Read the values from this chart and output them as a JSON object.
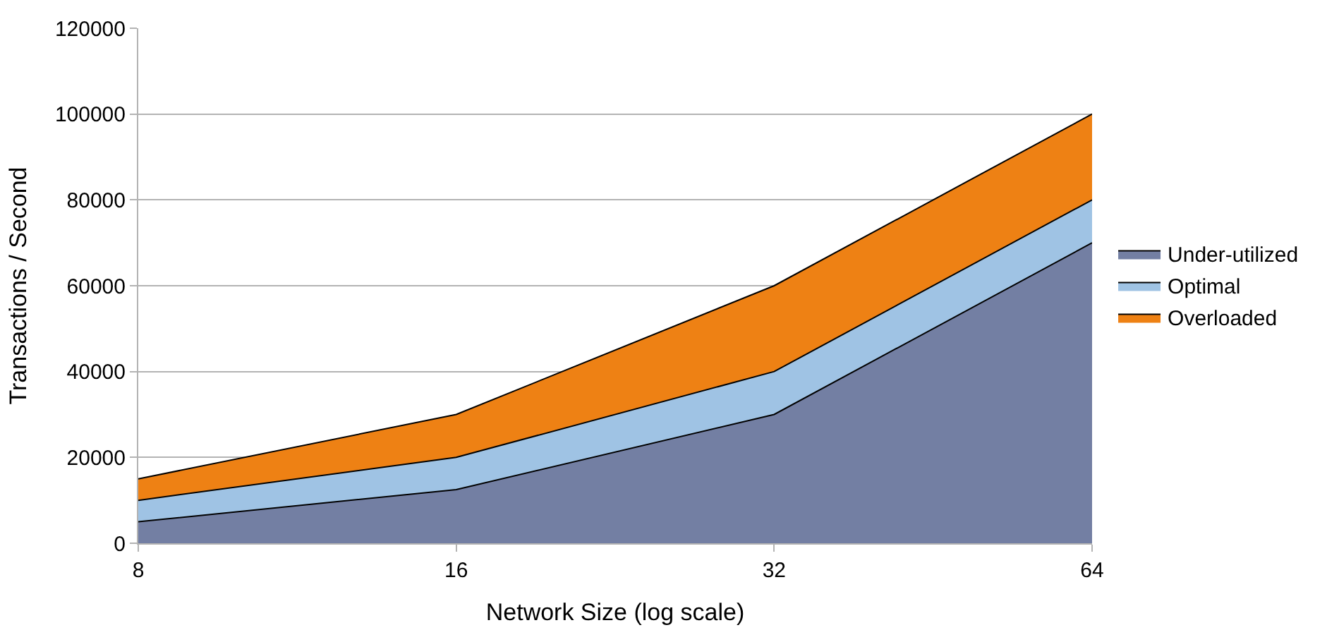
{
  "chart_data": {
    "type": "area",
    "stacked": true,
    "xlabel": "Network Size (log scale)",
    "ylabel": "Transactions / Second",
    "x": [
      8,
      16,
      32,
      64
    ],
    "log": "x",
    "xlim": [
      8,
      64
    ],
    "xticks": [
      8,
      16,
      32,
      64
    ],
    "ylim": [
      0,
      120000
    ],
    "yticks": [
      0,
      20000,
      40000,
      60000,
      80000,
      100000,
      120000
    ],
    "grid": "y",
    "legend": "right",
    "marker": "none",
    "series": [
      {
        "name": "Under-utilized",
        "color": "#737fa3",
        "values": [
          5000,
          12500,
          30000,
          70000
        ]
      },
      {
        "name": "Optimal",
        "color": "#9fc3e4",
        "values": [
          5000,
          7500,
          10000,
          10000
        ]
      },
      {
        "name": "Overloaded",
        "color": "#ee8114",
        "values": [
          5000,
          10000,
          20000,
          20000
        ]
      }
    ]
  }
}
